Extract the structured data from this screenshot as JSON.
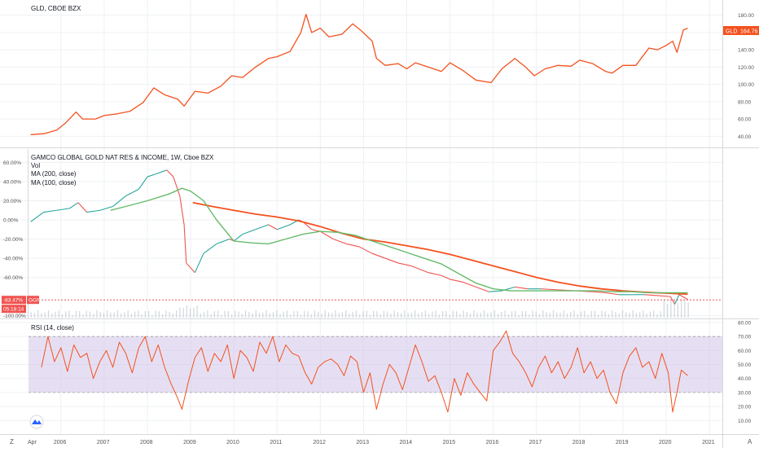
{
  "colors": {
    "gld_line": "#f4511e",
    "ggn_up": "#26a69a",
    "ggn_down": "#ef5350",
    "ma200": "#f4511e",
    "ma100": "#66bb6a",
    "rsi_line": "#f4511e",
    "rsi_band": "#d1c4e9",
    "volume": "#b0bec5",
    "gld_label_bg": "#f4511e",
    "ggn_label_bg": "#ef5350",
    "pane_bg": "#ffffff",
    "grid": "#eef0f3"
  },
  "panes": {
    "gld": {
      "title": "GLD, CBOE BZX"
    },
    "ggn": {
      "title": "GAMCO GLOBAL GOLD NAT RES & INCOME, 1W, Cboe BZX",
      "legend": [
        "Vol",
        "MA (200, close)",
        "MA (100, close)"
      ]
    },
    "rsi": {
      "title": "RSI (14, close)"
    }
  },
  "price_labels": {
    "gld": {
      "symbol": "GLD",
      "value": "164.76"
    },
    "ggn": {
      "value": "-83.47%",
      "symbol": "GGN",
      "countdown": "05:18:14"
    }
  },
  "x_axis": {
    "labels": [
      "Apr",
      "2006",
      "2007",
      "2008",
      "2009",
      "2010",
      "2011",
      "2012",
      "2013",
      "2014",
      "2015",
      "2016",
      "2017",
      "2018",
      "2019",
      "2020",
      "2021"
    ],
    "left_corner": "Z",
    "right_corner": "A"
  },
  "chart_data": [
    {
      "type": "line",
      "title": "GLD, CBOE BZX",
      "x_range": [
        2005.25,
        2021.3
      ],
      "ylim": [
        30,
        190
      ],
      "y_ticks": [
        "180.00",
        "160.00",
        "140.00",
        "120.00",
        "100.00",
        "80.00",
        "60.00",
        "40.00"
      ],
      "y_tick_values": [
        180,
        160,
        140,
        120,
        100,
        80,
        60,
        40
      ],
      "series": [
        {
          "name": "GLD",
          "x": [
            2005.3,
            2005.6,
            2005.9,
            2006.1,
            2006.35,
            2006.5,
            2006.8,
            2007.0,
            2007.3,
            2007.6,
            2007.9,
            2008.15,
            2008.4,
            2008.7,
            2008.85,
            2009.1,
            2009.4,
            2009.7,
            2009.95,
            2010.2,
            2010.5,
            2010.8,
            2011.0,
            2011.3,
            2011.55,
            2011.67,
            2011.8,
            2012.0,
            2012.2,
            2012.5,
            2012.75,
            2012.95,
            2013.2,
            2013.3,
            2013.5,
            2013.8,
            2014.0,
            2014.2,
            2014.5,
            2014.8,
            2015.0,
            2015.3,
            2015.6,
            2015.95,
            2016.2,
            2016.5,
            2016.75,
            2016.95,
            2017.2,
            2017.5,
            2017.8,
            2018.0,
            2018.3,
            2018.6,
            2018.75,
            2019.0,
            2019.3,
            2019.6,
            2019.8,
            2020.0,
            2020.15,
            2020.25,
            2020.4,
            2020.5
          ],
          "y": [
            42,
            43,
            47,
            55,
            68,
            60,
            60,
            64,
            66,
            69,
            79,
            96,
            88,
            83,
            75,
            92,
            90,
            98,
            110,
            108,
            120,
            130,
            132,
            138,
            160,
            181,
            160,
            165,
            155,
            158,
            170,
            162,
            150,
            130,
            122,
            124,
            118,
            125,
            120,
            115,
            125,
            116,
            105,
            102,
            118,
            130,
            120,
            110,
            118,
            122,
            121,
            128,
            124,
            115,
            113,
            122,
            122,
            142,
            140,
            145,
            150,
            137,
            163,
            165
          ]
        }
      ]
    },
    {
      "type": "line",
      "title": "GAMCO GLOBAL GOLD NAT RES & INCOME, 1W, Cboe BZX",
      "x_range": [
        2005.25,
        2021.3
      ],
      "ylim": [
        -102,
        68
      ],
      "y_ticks": [
        "60.00%",
        "40.00%",
        "20.00%",
        "0.00%",
        "-20.00%",
        "-40.00%",
        "-60.00%",
        "-100.00%"
      ],
      "y_tick_values": [
        60,
        40,
        20,
        0,
        -20,
        -40,
        -60,
        -100
      ],
      "series": [
        {
          "name": "GGN",
          "x": [
            2005.3,
            2005.6,
            2005.9,
            2006.2,
            2006.4,
            2006.6,
            2006.9,
            2007.2,
            2007.5,
            2007.8,
            2008.0,
            2008.2,
            2008.45,
            2008.6,
            2008.75,
            2008.85,
            2008.9,
            2009.1,
            2009.3,
            2009.6,
            2009.9,
            2010.0,
            2010.2,
            2010.5,
            2010.8,
            2011.0,
            2011.3,
            2011.5,
            2011.6,
            2011.8,
            2012.0,
            2012.3,
            2012.6,
            2012.9,
            2013.2,
            2013.5,
            2013.8,
            2014.1,
            2014.5,
            2014.8,
            2015.0,
            2015.3,
            2015.6,
            2015.9,
            2016.2,
            2016.5,
            2016.8,
            2017.1,
            2017.5,
            2017.9,
            2018.3,
            2018.6,
            2018.9,
            2019.2,
            2019.5,
            2019.8,
            2020.1,
            2020.2,
            2020.3,
            2020.5
          ],
          "y": [
            -2,
            8,
            10,
            12,
            18,
            8,
            10,
            14,
            25,
            32,
            45,
            48,
            52,
            45,
            25,
            -5,
            -45,
            -55,
            -35,
            -25,
            -20,
            -22,
            -15,
            -10,
            -5,
            -10,
            -5,
            0,
            -2,
            -10,
            -12,
            -20,
            -25,
            -28,
            -35,
            -40,
            -45,
            -48,
            -55,
            -58,
            -62,
            -65,
            -70,
            -75,
            -74,
            -70,
            -72,
            -72,
            -73,
            -74,
            -75,
            -76,
            -78,
            -78,
            -78,
            -79,
            -80,
            -88,
            -78,
            -83
          ]
        },
        {
          "name": "MA (200, close)",
          "x": [
            2009.05,
            2009.5,
            2010.0,
            2010.5,
            2011.0,
            2011.5,
            2012.0,
            2012.5,
            2013.0,
            2013.5,
            2014.0,
            2014.5,
            2015.0,
            2015.5,
            2016.0,
            2016.5,
            2017.0,
            2017.5,
            2018.0,
            2018.5,
            2019.0,
            2019.5,
            2020.0,
            2020.5
          ],
          "y": [
            18,
            14,
            10,
            6,
            3,
            -1,
            -7,
            -14,
            -20,
            -23,
            -27,
            -31,
            -36,
            -42,
            -48,
            -54,
            -60,
            -65,
            -69,
            -72,
            -74,
            -75.5,
            -76.5,
            -77.5
          ]
        },
        {
          "name": "MA (100, close)",
          "x": [
            2007.15,
            2007.5,
            2008.0,
            2008.5,
            2008.8,
            2009.0,
            2009.3,
            2009.6,
            2010.0,
            2010.4,
            2010.8,
            2011.2,
            2011.6,
            2012.0,
            2012.4,
            2012.8,
            2013.2,
            2013.6,
            2014.0,
            2014.4,
            2014.8,
            2015.2,
            2015.6,
            2016.0,
            2016.4,
            2016.8,
            2017.2,
            2017.6,
            2018.0,
            2018.4,
            2018.8,
            2019.2,
            2019.6,
            2020.0,
            2020.3,
            2020.5
          ],
          "y": [
            10,
            14,
            20,
            27,
            33,
            30,
            20,
            0,
            -22,
            -24,
            -25,
            -20,
            -15,
            -12,
            -13,
            -16,
            -22,
            -28,
            -34,
            -40,
            -46,
            -56,
            -66,
            -72,
            -74,
            -74,
            -74,
            -74,
            -74,
            -74,
            -75,
            -75,
            -76,
            -76,
            -76,
            -76
          ]
        }
      ]
    },
    {
      "type": "line",
      "title": "RSI (14, close)",
      "x_range": [
        2005.25,
        2021.3
      ],
      "ylim": [
        2,
        80
      ],
      "y_ticks": [
        "80.00",
        "70.00",
        "60.00",
        "50.00",
        "40.00",
        "30.00",
        "20.00",
        "10.00"
      ],
      "y_tick_values": [
        80,
        70,
        60,
        50,
        40,
        30,
        20,
        10
      ],
      "band": [
        30,
        70
      ],
      "series": [
        {
          "name": "RSI",
          "x": [
            2005.55,
            2005.7,
            2005.85,
            2006.0,
            2006.15,
            2006.3,
            2006.45,
            2006.6,
            2006.75,
            2006.9,
            2007.05,
            2007.2,
            2007.35,
            2007.5,
            2007.65,
            2007.8,
            2007.95,
            2008.1,
            2008.25,
            2008.4,
            2008.55,
            2008.7,
            2008.8,
            2008.95,
            2009.1,
            2009.25,
            2009.4,
            2009.55,
            2009.7,
            2009.85,
            2010.0,
            2010.15,
            2010.3,
            2010.45,
            2010.6,
            2010.75,
            2010.9,
            2011.05,
            2011.2,
            2011.35,
            2011.5,
            2011.65,
            2011.8,
            2011.95,
            2012.1,
            2012.25,
            2012.4,
            2012.55,
            2012.7,
            2012.85,
            2013.0,
            2013.15,
            2013.3,
            2013.45,
            2013.6,
            2013.75,
            2013.9,
            2014.05,
            2014.2,
            2014.35,
            2014.5,
            2014.65,
            2014.8,
            2014.95,
            2015.1,
            2015.25,
            2015.4,
            2015.55,
            2015.7,
            2015.85,
            2016.0,
            2016.15,
            2016.3,
            2016.45,
            2016.6,
            2016.75,
            2016.9,
            2017.05,
            2017.2,
            2017.35,
            2017.5,
            2017.65,
            2017.8,
            2017.95,
            2018.1,
            2018.25,
            2018.4,
            2018.55,
            2018.7,
            2018.85,
            2019.0,
            2019.15,
            2019.3,
            2019.45,
            2019.6,
            2019.75,
            2019.9,
            2020.05,
            2020.15,
            2020.25,
            2020.35,
            2020.5
          ],
          "y": [
            48,
            70,
            52,
            62,
            45,
            64,
            55,
            58,
            40,
            52,
            60,
            48,
            66,
            58,
            44,
            62,
            70,
            52,
            64,
            48,
            36,
            26,
            18,
            38,
            55,
            62,
            45,
            58,
            52,
            64,
            40,
            60,
            55,
            45,
            66,
            58,
            70,
            52,
            64,
            58,
            56,
            44,
            36,
            48,
            52,
            54,
            50,
            42,
            56,
            52,
            30,
            44,
            18,
            36,
            50,
            44,
            32,
            48,
            64,
            52,
            38,
            42,
            30,
            16,
            40,
            28,
            44,
            36,
            30,
            24,
            60,
            66,
            74,
            58,
            52,
            44,
            34,
            48,
            56,
            44,
            52,
            40,
            48,
            62,
            44,
            52,
            40,
            46,
            30,
            22,
            44,
            56,
            62,
            48,
            52,
            40,
            58,
            44,
            16,
            30,
            46,
            42
          ]
        }
      ]
    }
  ]
}
